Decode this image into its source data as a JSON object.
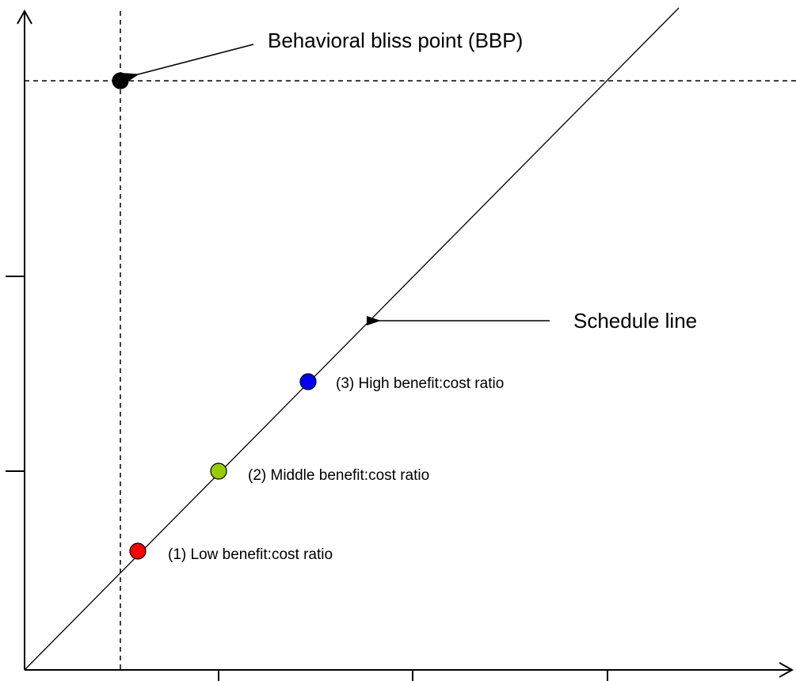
{
  "annotations": {
    "bbp_label": "Behavioral bliss point (BBP)",
    "schedule_label": "Schedule line"
  },
  "points": [
    {
      "id": "low",
      "label": "(1) Low benefit:cost ratio",
      "color": "#ff0000"
    },
    {
      "id": "middle",
      "label": "(2) Middle benefit:cost ratio",
      "color": "#99cc00"
    },
    {
      "id": "high",
      "label": "(3) High benefit:cost ratio",
      "color": "#0000ff"
    }
  ],
  "bbp": {
    "color": "#000000"
  },
  "colors": {
    "ink": "#000000",
    "background": "#ffffff"
  }
}
